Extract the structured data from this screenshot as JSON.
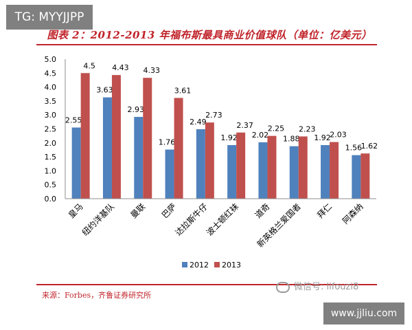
{
  "watermark_top": "TG: MYYJJPP",
  "watermark_bottom": "www.jjliu.com",
  "wechat_text": "微信号: lifouzi8",
  "source_text": "来源：Forbes，齐鲁证券研究所",
  "chart_data": {
    "type": "bar",
    "title": "图表 2：2012-2013 年福布斯最具商业价值球队（单位：亿美元）",
    "xlabel": "",
    "ylabel": "",
    "ylim": [
      0,
      5
    ],
    "yticks": [
      "0.0",
      "0.5",
      "1.0",
      "1.5",
      "2.0",
      "2.5",
      "3.0",
      "3.5",
      "4.0",
      "4.5",
      "5.0"
    ],
    "grid": false,
    "legend": "bottom",
    "categories": [
      "皇马",
      "纽约洋基队",
      "曼联",
      "巴萨",
      "达拉斯牛仔",
      "波士顿红袜",
      "道奇",
      "新英格兰爱国者",
      "拜仁",
      "阿森纳"
    ],
    "series": [
      {
        "name": "2012",
        "color": "#4f81bd",
        "values": [
          2.55,
          3.63,
          2.93,
          1.76,
          2.49,
          1.92,
          2.02,
          1.88,
          1.92,
          1.56
        ]
      },
      {
        "name": "2013",
        "color": "#c0504d",
        "values": [
          4.5,
          4.43,
          4.33,
          3.61,
          2.73,
          2.37,
          2.25,
          2.23,
          2.03,
          1.62
        ]
      }
    ],
    "data_labels": [
      [
        "2.55",
        "3.63",
        "2.93",
        "1.76",
        "2.49",
        "1.92",
        "2.02",
        "1.88",
        "1.92",
        "1.56"
      ],
      [
        "4.5",
        "4.43",
        "4.33",
        "3.61",
        "2.73",
        "2.37",
        "2.25",
        "2.23",
        "2.03",
        "1.62"
      ]
    ]
  }
}
